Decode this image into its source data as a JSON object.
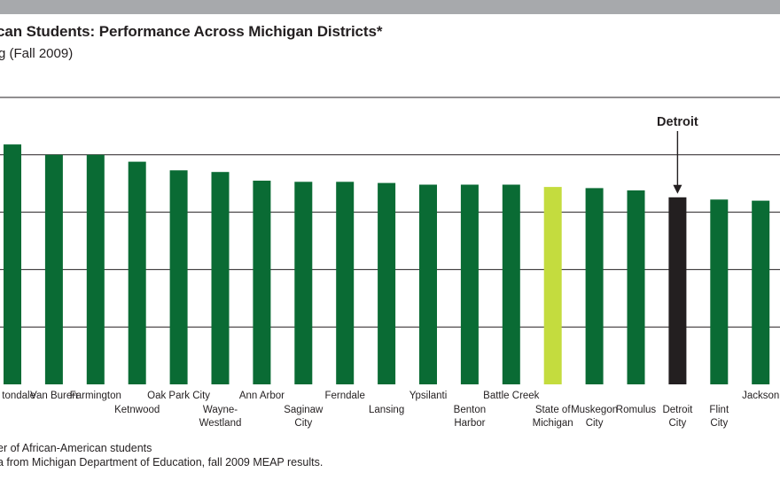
{
  "header": {
    "title": "can Students: Performance Across Michigan Districts*",
    "subtitle": "g (Fall 2009)"
  },
  "notes": {
    "line1": "er of African-American students",
    "line2": "a from Michigan Department of Education, fall 2009 MEAP results."
  },
  "chart_data": {
    "type": "bar",
    "title": "can Students: Performance Across Michigan Districts*",
    "subtitle": "g (Fall 2009)",
    "xlabel": "",
    "ylabel": "",
    "grid": true,
    "categories": [
      [
        "tondale"
      ],
      [
        "Van Buren"
      ],
      [
        "Farmington"
      ],
      [
        "Ketnwood"
      ],
      [
        "Oak Park City"
      ],
      [
        "Wayne-",
        "Westland"
      ],
      [
        "Ann Arbor"
      ],
      [
        "Saginaw",
        "City"
      ],
      [
        "Ferndale"
      ],
      [
        "Lansing"
      ],
      [
        "Ypsilanti"
      ],
      [
        "Benton",
        "Harbor"
      ],
      [
        "Battle Creek"
      ],
      [
        "State of",
        "Michigan"
      ],
      [
        "Muskegon",
        "City"
      ],
      [
        "Romulus"
      ],
      [
        "Detroit",
        "City"
      ],
      [
        "Flint",
        "City"
      ],
      [
        "Jackson"
      ]
    ],
    "values": [
      4.18,
      4.0,
      4.0,
      3.88,
      3.73,
      3.7,
      3.55,
      3.53,
      3.53,
      3.51,
      3.48,
      3.48,
      3.48,
      3.44,
      3.42,
      3.38,
      3.26,
      3.22,
      3.2
    ],
    "ylim": [
      0,
      5
    ],
    "colors": {
      "district": "#0a6b34",
      "state": "#c4dc3e",
      "detroit": "#231f20",
      "grid": "#231f20",
      "topbar": "#a7a9ac"
    },
    "highlight": {
      "state_index": 13,
      "detroit_index": 16
    },
    "annotation": {
      "text": "Detroit",
      "target_index": 16
    }
  }
}
